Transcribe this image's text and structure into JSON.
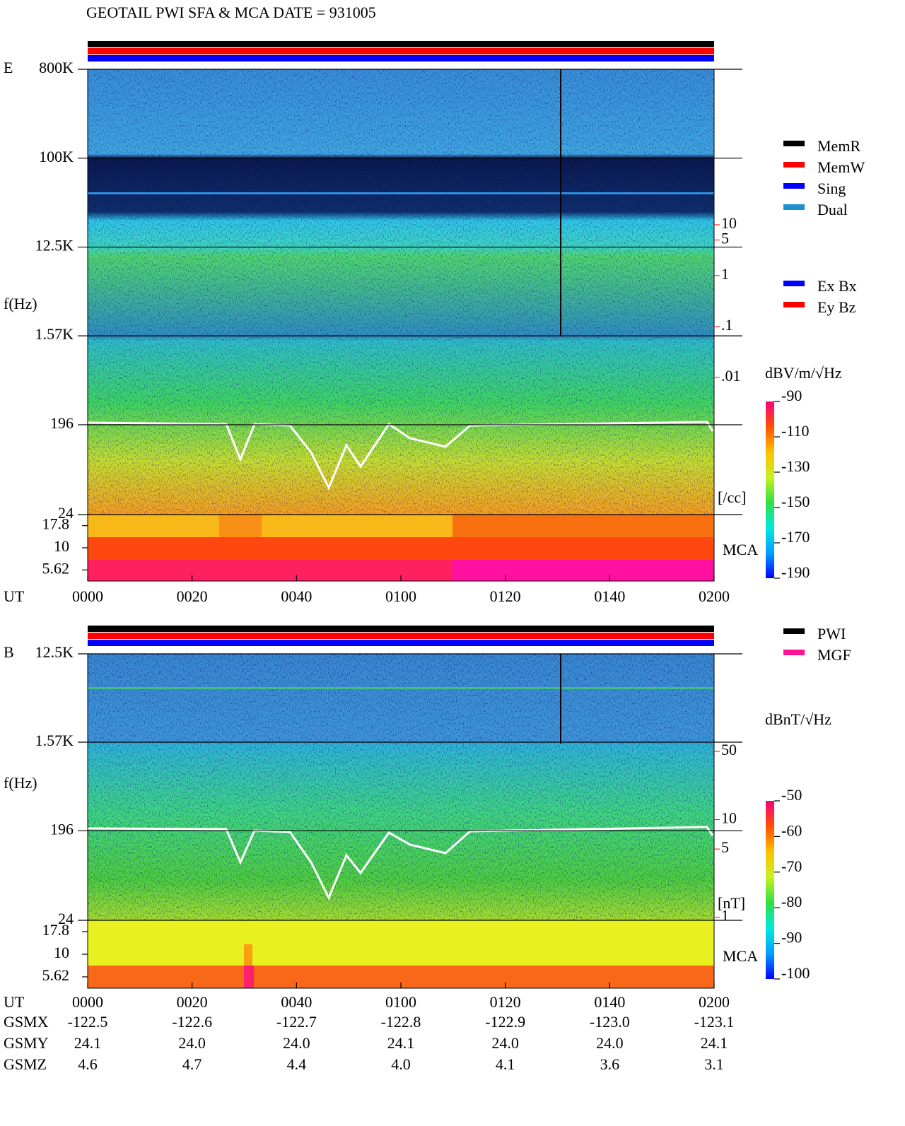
{
  "title": "GEOTAIL  PWI SFA & MCA  DATE = 931005",
  "chart_data": [
    {
      "type": "spectrogram",
      "panel_label": "E",
      "y_label": "f(Hz)",
      "x_label": "UT",
      "x_ticks": [
        "0000",
        "0020",
        "0040",
        "0100",
        "0120",
        "0140",
        "0200"
      ],
      "log_y": true,
      "ylim": [
        24,
        800000
      ],
      "yticks": [
        {
          "value": 800000,
          "label": "800K"
        },
        {
          "value": 100000,
          "label": "100K"
        },
        {
          "value": 12500,
          "label": "12.5K"
        },
        {
          "value": 1570,
          "label": "1.57K"
        },
        196,
        24
      ],
      "mca_label": "MCA",
      "mca_channels": [
        17.8,
        10,
        5.62
      ],
      "y2lim": [
        2e-05,
        11400
      ],
      "y2ticks": [
        10,
        5,
        1,
        {
          "value": 0.1,
          "label": ".1"
        },
        {
          "value": 0.01,
          "label": ".01"
        }
      ],
      "y2_unit": "[/cc]",
      "y2_color": "#ff0000",
      "legend": [
        {
          "name": "MemR",
          "color": "#000000"
        },
        {
          "name": "MemW",
          "color": "#ff0000"
        },
        {
          "name": "Sing",
          "color": "#0000ff"
        },
        {
          "name": "Dual",
          "color": "#1e90d0"
        }
      ],
      "legend2": [
        {
          "name": "Ex Bx",
          "color": "#0000ff"
        },
        {
          "name": "Ey Bz",
          "color": "#ff0000"
        }
      ],
      "colorbar": {
        "title": "dBV/m/√Hz",
        "clim": [
          -190,
          -90
        ],
        "ticks": [
          -90,
          -110,
          -130,
          -150,
          -170,
          -190
        ]
      }
    },
    {
      "type": "spectrogram",
      "panel_label": "B",
      "y_label": "f(Hz)",
      "x_label": "UT",
      "x_ticks": [
        "0000",
        "0020",
        "0040",
        "0100",
        "0120",
        "0140",
        "0200"
      ],
      "log_y": true,
      "ylim": [
        24,
        12500
      ],
      "yticks": [
        {
          "value": 12500,
          "label": "12.5K"
        },
        {
          "value": 1570,
          "label": "1.57K"
        },
        196,
        24
      ],
      "mca_label": "MCA",
      "mca_channels": [
        17.8,
        10,
        5.62
      ],
      "y2lim": [
        0.93,
        500
      ],
      "y2ticks": [
        50,
        10,
        5,
        1
      ],
      "y2_unit": "[nT]",
      "y2_color": "#ff0000",
      "legend": [
        {
          "name": "PWI",
          "color": "#000000"
        },
        {
          "name": "MGF",
          "color": "#ff1493"
        }
      ],
      "colorbar": {
        "title": "dBnT/√Hz",
        "clim": [
          -100,
          -50
        ],
        "ticks": [
          -50,
          -60,
          -70,
          -80,
          -90,
          -100
        ]
      }
    }
  ],
  "orbit": {
    "rows": [
      {
        "name": "GSMX",
        "values": [
          "-122.5",
          "-122.6",
          "-122.7",
          "-122.8",
          "-122.9",
          "-123.0",
          "-123.1"
        ]
      },
      {
        "name": "GSMY",
        "values": [
          "24.1",
          "24.0",
          "24.0",
          "24.1",
          "24.0",
          "24.0",
          "24.1"
        ]
      },
      {
        "name": "GSMZ",
        "values": [
          "4.6",
          "4.7",
          "4.4",
          "4.0",
          "4.1",
          "3.6",
          "3.1"
        ]
      }
    ]
  }
}
